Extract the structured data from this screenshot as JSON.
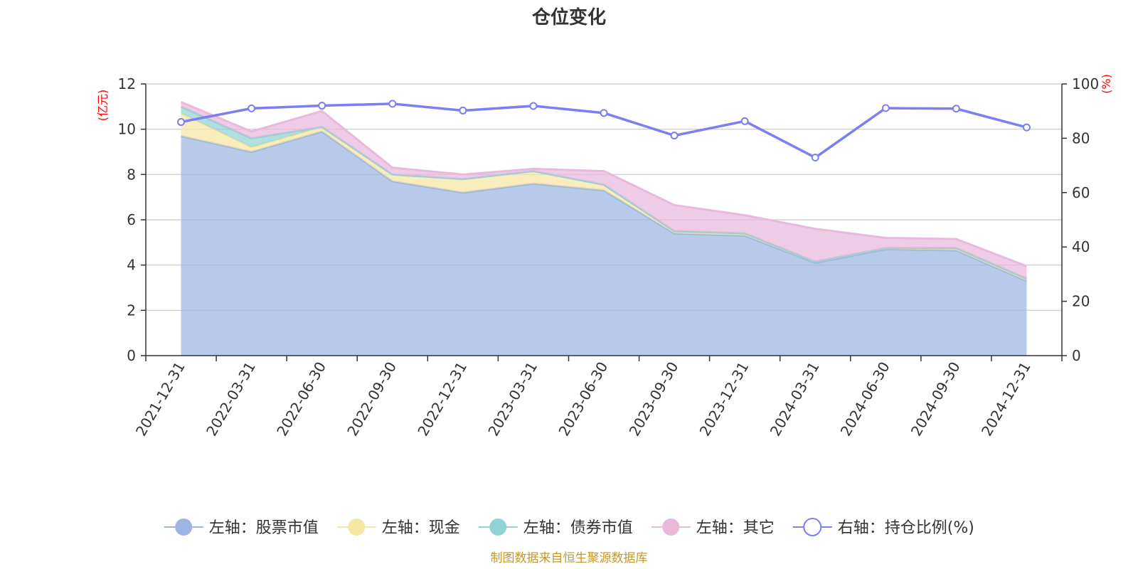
{
  "title": "仓位变化",
  "source_note": "制图数据来自恒生聚源数据库",
  "colors": {
    "stock": "#9db5e0",
    "cash": "#f7e6a3",
    "bond": "#93d2d4",
    "other": "#e9b9dc",
    "ratio": "#7b7ff0",
    "grid": "#c8c8c8",
    "axis": "#333333",
    "unit": "#ff0000",
    "source": "#c8962a"
  },
  "chart_data": {
    "type": "area",
    "title": "仓位变化",
    "categories": [
      "2021-12-31",
      "2022-03-31",
      "2022-06-30",
      "2022-09-30",
      "2022-12-31",
      "2023-03-31",
      "2023-06-30",
      "2023-09-30",
      "2023-12-31",
      "2024-03-31",
      "2024-06-30",
      "2024-09-30",
      "2024-12-31"
    ],
    "left_axis": {
      "unit": "(亿元)",
      "ylim": [
        0,
        12
      ],
      "ticks": [
        0,
        2,
        4,
        6,
        8,
        10,
        12
      ]
    },
    "right_axis": {
      "unit": "(%)",
      "ylim": [
        0,
        100
      ],
      "ticks": [
        0,
        20,
        40,
        60,
        80,
        100
      ]
    },
    "grid": true,
    "stacked": true,
    "series": [
      {
        "key": "stock",
        "name": "左轴：股票市值",
        "axis": "left",
        "values": [
          9.7,
          9.0,
          9.9,
          7.7,
          7.2,
          7.6,
          7.3,
          5.4,
          5.3,
          4.1,
          4.7,
          4.65,
          3.3
        ]
      },
      {
        "key": "cash",
        "name": "左轴：现金",
        "axis": "left",
        "values": [
          1.0,
          0.2,
          0.2,
          0.3,
          0.6,
          0.55,
          0.25,
          0.1,
          0.1,
          0.05,
          0.05,
          0.1,
          0.1
        ]
      },
      {
        "key": "bond",
        "name": "左轴：债券市值",
        "axis": "left",
        "values": [
          0.3,
          0.4,
          0.0,
          0.0,
          0.0,
          0.0,
          0.0,
          0.0,
          0.0,
          0.0,
          0.0,
          0.0,
          0.0
        ]
      },
      {
        "key": "other",
        "name": "左轴：其它",
        "axis": "left",
        "values": [
          0.2,
          0.3,
          0.7,
          0.3,
          0.2,
          0.1,
          0.6,
          1.15,
          0.8,
          1.45,
          0.45,
          0.4,
          0.55
        ]
      },
      {
        "key": "ratio",
        "name": "右轴：持仓比例(%)",
        "axis": "right",
        "type": "line",
        "values": [
          86,
          91,
          92,
          92.7,
          90.2,
          91.9,
          89.3,
          81,
          86.3,
          72.9,
          91.1,
          90.9,
          84
        ]
      }
    ],
    "legend_position": "bottom"
  }
}
